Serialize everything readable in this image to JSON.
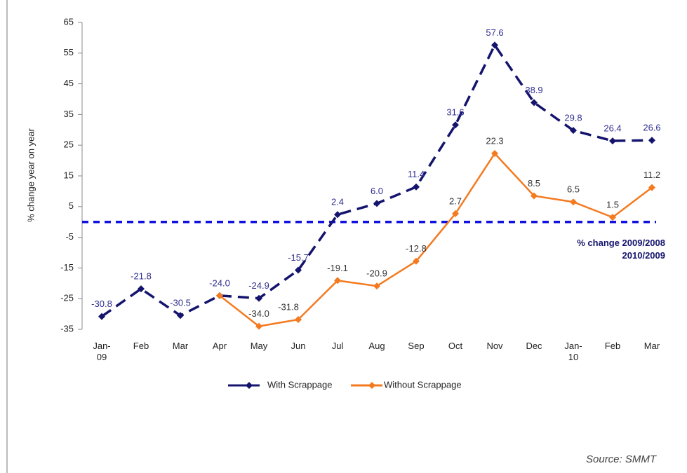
{
  "chart_data": {
    "type": "line",
    "y_label": "% change year on year",
    "categories": [
      "Jan-09",
      "Feb",
      "Mar",
      "Apr",
      "May",
      "Jun",
      "Jul",
      "Aug",
      "Sep",
      "Oct",
      "Nov",
      "Dec",
      "Jan-10",
      "Feb",
      "Mar"
    ],
    "series": [
      {
        "name": "With Scrappage",
        "color": "#14146e",
        "dashed": true,
        "values": [
          -30.8,
          -21.8,
          -30.5,
          -24.0,
          -24.9,
          -15.7,
          2.4,
          6.0,
          11.4,
          31.6,
          57.6,
          38.9,
          29.8,
          26.4,
          26.6
        ],
        "value_labels": [
          "-30.8",
          "-21.8",
          "-30.5",
          "-24.0",
          "-24.9",
          "-15.7",
          "2.4",
          "6.0",
          "11.4",
          "31.6",
          "57.6",
          "38.9",
          "29.8",
          "26.4",
          "26.6"
        ]
      },
      {
        "name": "Without Scrappage",
        "color": "#f47a20",
        "dashed": false,
        "values": [
          null,
          null,
          null,
          -24.0,
          -34.0,
          -31.8,
          -19.1,
          -20.9,
          -12.8,
          2.7,
          22.3,
          8.5,
          6.5,
          1.5,
          11.2
        ],
        "value_labels": [
          null,
          null,
          null,
          null,
          "-34.0",
          "-31.8",
          "-19.1",
          "-20.9",
          "-12.8",
          "2.7",
          "22.3",
          "8.5",
          "6.5",
          "1.5",
          "11.2"
        ]
      }
    ],
    "ylim": [
      -35,
      65
    ],
    "yticks": [
      -35,
      -25,
      -15,
      -5,
      5,
      15,
      25,
      35,
      45,
      55,
      65
    ],
    "reference_line": 0,
    "annotation": [
      "% change 2009/2008",
      "2010/2009"
    ],
    "source": "Source: SMMT"
  }
}
